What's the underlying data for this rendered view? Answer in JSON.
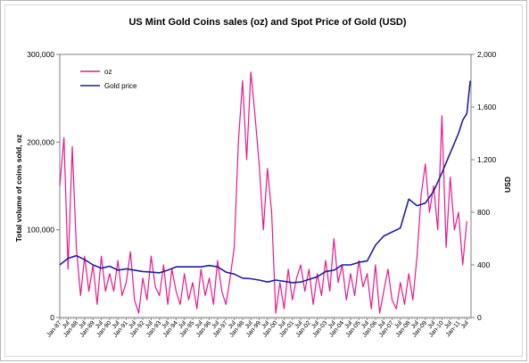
{
  "chart_data": {
    "type": "line",
    "title": "US Mint Gold Coins sales (oz) and Spot Price of Gold (USD)",
    "ylabel_left": "Total volume of coins sold, oz",
    "ylabel_right": "USD",
    "ylim_left": [
      0,
      300000
    ],
    "ylim_right": [
      0,
      2000
    ],
    "yticks_left": [
      "0",
      "100,000",
      "200,000",
      "300,000"
    ],
    "yticks_right": [
      "0",
      "400",
      "800",
      "1,200",
      "1,600",
      "2,000"
    ],
    "x_range": [
      1987.0,
      2011.75
    ],
    "x_tick_labels": [
      "Jan-87",
      "Jul",
      "Jan-88",
      "Jul",
      "Jan-89",
      "Jul",
      "Jan-90",
      "Jul",
      "Jan-91",
      "Jul",
      "Jan-92",
      "Jul",
      "Jan-93",
      "Jul",
      "Jan-94",
      "Jul",
      "Jan-95",
      "Jul",
      "Jan-96",
      "Jul",
      "Jan-97",
      "Jul",
      "Jan-98",
      "Jul",
      "Jan-99",
      "Jul",
      "Jan-00",
      "Jul",
      "Jan-01",
      "Jul",
      "Jan-02",
      "Jul",
      "Jan-03",
      "Jul",
      "Jan-04",
      "Jul",
      "Jan-05",
      "Jul",
      "Jan-06",
      "Jul",
      "Jan-07",
      "Jul",
      "Jan-08",
      "Jul",
      "Jan-09",
      "Jul",
      "Jan-10",
      "Jul",
      "Jan-11",
      "Jul"
    ],
    "legend_position": "top-left",
    "series": [
      {
        "name": "oz",
        "axis": "left",
        "color": "#e6198c",
        "x": [
          1987.0,
          1987.25,
          1987.5,
          1987.75,
          1988.0,
          1988.25,
          1988.5,
          1988.75,
          1989.0,
          1989.25,
          1989.5,
          1989.75,
          1990.0,
          1990.25,
          1990.5,
          1990.75,
          1991.0,
          1991.25,
          1991.5,
          1991.75,
          1992.0,
          1992.25,
          1992.5,
          1992.75,
          1993.0,
          1993.25,
          1993.5,
          1993.75,
          1994.0,
          1994.25,
          1994.5,
          1994.75,
          1995.0,
          1995.25,
          1995.5,
          1995.75,
          1996.0,
          1996.25,
          1996.5,
          1996.75,
          1997.0,
          1997.25,
          1997.5,
          1997.75,
          1998.0,
          1998.25,
          1998.5,
          1998.75,
          1999.0,
          1999.25,
          1999.5,
          1999.75,
          2000.0,
          2000.25,
          2000.5,
          2000.75,
          2001.0,
          2001.25,
          2001.5,
          2001.75,
          2002.0,
          2002.25,
          2002.5,
          2002.75,
          2003.0,
          2003.25,
          2003.5,
          2003.75,
          2004.0,
          2004.25,
          2004.5,
          2004.75,
          2005.0,
          2005.25,
          2005.5,
          2005.75,
          2006.0,
          2006.25,
          2006.5,
          2006.75,
          2007.0,
          2007.25,
          2007.5,
          2007.75,
          2008.0,
          2008.25,
          2008.5,
          2008.75,
          2009.0,
          2009.25,
          2009.5,
          2009.75,
          2010.0,
          2010.25,
          2010.5,
          2010.75,
          2011.0,
          2011.25,
          2011.5
        ],
        "values": [
          150000,
          205000,
          55000,
          195000,
          80000,
          25000,
          70000,
          30000,
          60000,
          15000,
          70000,
          30000,
          50000,
          30000,
          65000,
          25000,
          40000,
          75000,
          20000,
          5000,
          45000,
          20000,
          70000,
          35000,
          25000,
          60000,
          15000,
          55000,
          30000,
          15000,
          50000,
          20000,
          40000,
          10000,
          55000,
          25000,
          45000,
          15000,
          65000,
          30000,
          15000,
          45000,
          80000,
          200000,
          270000,
          180000,
          280000,
          230000,
          175000,
          100000,
          170000,
          120000,
          5000,
          40000,
          10000,
          55000,
          20000,
          45000,
          60000,
          30000,
          55000,
          15000,
          50000,
          25000,
          65000,
          30000,
          90000,
          40000,
          60000,
          20000,
          50000,
          25000,
          65000,
          35000,
          50000,
          10000,
          60000,
          5000,
          30000,
          55000,
          20000,
          10000,
          40000,
          15000,
          50000,
          20000,
          70000,
          140000,
          175000,
          120000,
          150000,
          100000,
          230000,
          80000,
          160000,
          100000,
          120000,
          60000,
          110000
        ]
      },
      {
        "name": "Gold price",
        "axis": "right",
        "color": "#1f1fa0",
        "x": [
          1987.0,
          1987.5,
          1988.0,
          1988.5,
          1989.0,
          1989.5,
          1990.0,
          1990.5,
          1991.0,
          1991.5,
          1992.0,
          1992.5,
          1993.0,
          1993.5,
          1994.0,
          1994.5,
          1995.0,
          1995.5,
          1996.0,
          1996.5,
          1997.0,
          1997.5,
          1998.0,
          1998.5,
          1999.0,
          1999.5,
          2000.0,
          2000.5,
          2001.0,
          2001.5,
          2002.0,
          2002.5,
          2003.0,
          2003.5,
          2004.0,
          2004.5,
          2005.0,
          2005.5,
          2006.0,
          2006.5,
          2007.0,
          2007.5,
          2008.0,
          2008.5,
          2009.0,
          2009.5,
          2010.0,
          2010.5,
          2011.0,
          2011.25,
          2011.5,
          2011.7
        ],
        "values": [
          400,
          450,
          470,
          440,
          400,
          375,
          390,
          360,
          370,
          360,
          350,
          345,
          340,
          360,
          385,
          385,
          385,
          385,
          395,
          385,
          345,
          330,
          300,
          295,
          285,
          270,
          285,
          275,
          265,
          270,
          290,
          310,
          350,
          360,
          400,
          400,
          420,
          430,
          550,
          620,
          650,
          680,
          900,
          850,
          870,
          960,
          1100,
          1250,
          1400,
          1500,
          1550,
          1800
        ]
      }
    ]
  }
}
